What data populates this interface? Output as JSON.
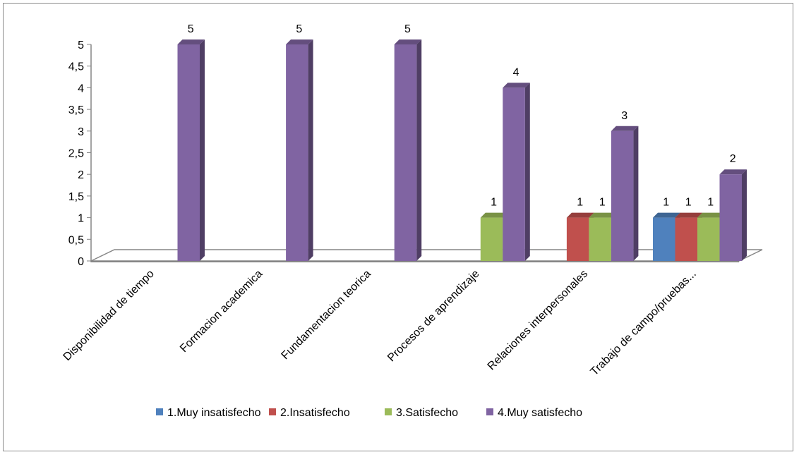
{
  "chart_data": {
    "type": "bar",
    "style": "3d-clustered-column",
    "title": "",
    "xlabel": "",
    "ylabel": "",
    "ylim": [
      0,
      5
    ],
    "yticks": [
      "0",
      "0,5",
      "1",
      "1,5",
      "2",
      "2,5",
      "3",
      "3,5",
      "4",
      "4,5",
      "5"
    ],
    "grid": false,
    "legend_position": "bottom",
    "categories": [
      "Disponibilidad de tiempo",
      "Formacion academica",
      "Fundamentacion teorica",
      "Procesos de aprendizaje",
      "Relaciones interpersonales",
      "Trabajo de campo/pruebas..."
    ],
    "series": [
      {
        "name": "1.Muy insatisfecho",
        "color": "#4f81bd",
        "values": [
          null,
          null,
          null,
          null,
          null,
          1
        ]
      },
      {
        "name": "2.Insatisfecho",
        "color": "#c0504d",
        "values": [
          null,
          null,
          null,
          null,
          1,
          1
        ]
      },
      {
        "name": "3.Satisfecho",
        "color": "#9bbb59",
        "values": [
          null,
          null,
          null,
          1,
          1,
          1
        ]
      },
      {
        "name": "4.Muy satisfecho",
        "color": "#8064a2",
        "values": [
          5,
          5,
          5,
          4,
          3,
          2
        ]
      }
    ]
  }
}
